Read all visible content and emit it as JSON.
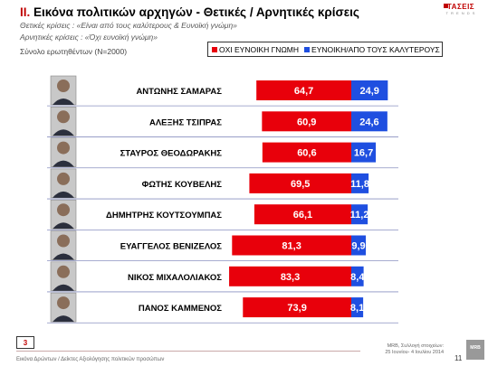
{
  "header": {
    "section_number": "ΙΙ.",
    "title": "Εικόνα πολιτικών αρχηγών  - Θετικές / Αρνητικές κρίσεις",
    "positive_note": "Θετικές κρίσεις : «Είναι από τους καλύτερους & Ευνοϊκή γνώμη»",
    "negative_note": "Αρνητικές κρίσεις : «Όχι ευνοϊκή γνώμη»",
    "sample": "Σύνολο ερωτηθέντων (N=2000)"
  },
  "logo": {
    "mark": "ΤΑΣΕΙΣ",
    "sub": "T R E N D S"
  },
  "footer": {
    "left": "Εικόνα Δρώντων / Δείκτες Αξιολόγησης πολιτικών προσώπων",
    "right_line1": "MRB, Συλλογή στοιχείων:",
    "right_line2": "25 Ιουνίου- 4 Ιουλίου 2014",
    "page_box": "3",
    "page_number": "11",
    "mrb_logo": "MRB"
  },
  "colors": {
    "negative": "#e8000b",
    "positive": "#1f4fe0",
    "divider": "#8a90c0"
  },
  "chart_data": {
    "type": "bar",
    "orientation": "horizontal-diverging",
    "categories": [
      "ΑΝΤΩΝΗΣ ΣΑΜΑΡΑΣ",
      "ΑΛΕΞΗΣ ΤΣΙΠΡΑΣ",
      "ΣΤΑΥΡΟΣ ΘΕΟΔΩΡΑΚΗΣ",
      "ΦΩΤΗΣ ΚΟΥΒΕΛΗΣ",
      "ΔΗΜΗΤΡΗΣ ΚΟΥΤΣΟΥΜΠΑΣ",
      "ΕΥΑΓΓΕΛΟΣ ΒΕΝΙΖΕΛΟΣ",
      "ΝΙΚΟΣ ΜΙΧΑΛΟΛΙΑΚΟΣ",
      "ΠΑΝΟΣ ΚΑΜΜΕΝΟΣ"
    ],
    "series": [
      {
        "name": "ΟΧΙ ΕΥΝΟΙΚΗ ΓΝΩΜΗ",
        "color": "#e8000b",
        "values": [
          64.7,
          60.9,
          60.6,
          69.5,
          66.1,
          81.3,
          83.3,
          73.9
        ],
        "labels": [
          "64,7",
          "60,9",
          "60,6",
          "69,5",
          "66,1",
          "81,3",
          "83,3",
          "73,9"
        ]
      },
      {
        "name": "ΕΥΝΟΙΚΗ/ΑΠΟ ΤΟΥΣ ΚΑΛΥΤΕΡΟΥΣ",
        "color": "#1f4fe0",
        "values": [
          24.9,
          24.6,
          16.7,
          11.8,
          11.2,
          9.9,
          8.4,
          8.1
        ],
        "labels": [
          "24,9",
          "24,6",
          "16,7",
          "11,8",
          "11,2",
          "9,9",
          "8,4",
          "8,1"
        ]
      }
    ]
  }
}
